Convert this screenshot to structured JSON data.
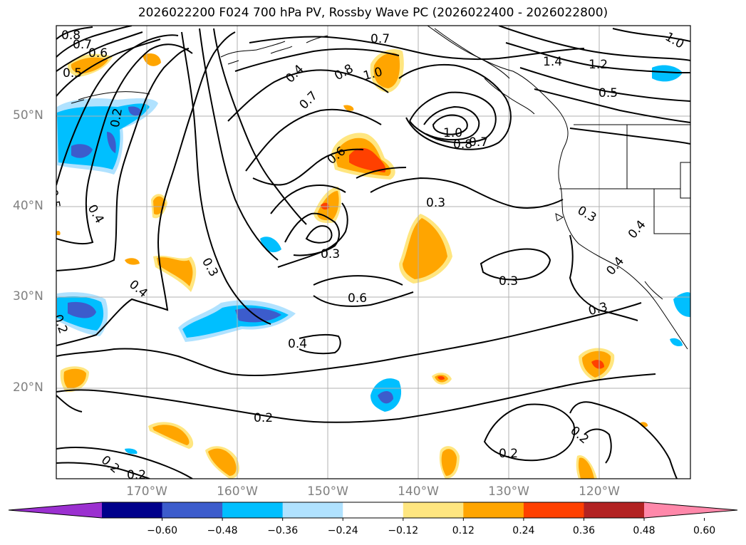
{
  "title": "2026022200 F024 700 hPa PV, Rossby Wave PC (2026022400 - 2026022800)",
  "map": {
    "lat_labels": [
      "50°N",
      "40°N",
      "30°N",
      "20°N"
    ],
    "lon_labels": [
      "170°W",
      "160°W",
      "150°W",
      "140°W",
      "130°W",
      "120°W"
    ],
    "contour_labels": [
      "0.8",
      "0.7",
      "0.6",
      "0.5",
      "0.2",
      "0.5",
      "0.4",
      "0.4",
      "0.3",
      "0.4",
      "0.2",
      "0.7",
      "0.8",
      "1.0",
      "0.7",
      "0.6",
      "1.0",
      "0.8",
      "0.7",
      "0.3",
      "0.3",
      "0.6",
      "0.4",
      "0.3",
      "0.2",
      "0.2",
      "1.4",
      "1.2",
      "0.5",
      "1.0",
      "0.3",
      "0.4",
      "0.4",
      "0.3",
      "0.2",
      "0.2",
      "0.2"
    ],
    "colors": {
      "contour": "#000000",
      "grid": "#b0b0b0",
      "coast": "#000000"
    }
  },
  "colorbar": {
    "ticks": [
      "−0.60",
      "−0.48",
      "−0.36",
      "−0.24",
      "−0.12",
      "0.12",
      "0.24",
      "0.36",
      "0.48",
      "0.60"
    ],
    "colors": [
      "#9b30d0",
      "#00008b",
      "#3c5ccc",
      "#00bfff",
      "#b0e2ff",
      "#ffffff",
      "#ffe680",
      "#ffa500",
      "#ff4000",
      "#b22222",
      "#ff88aa"
    ]
  }
}
